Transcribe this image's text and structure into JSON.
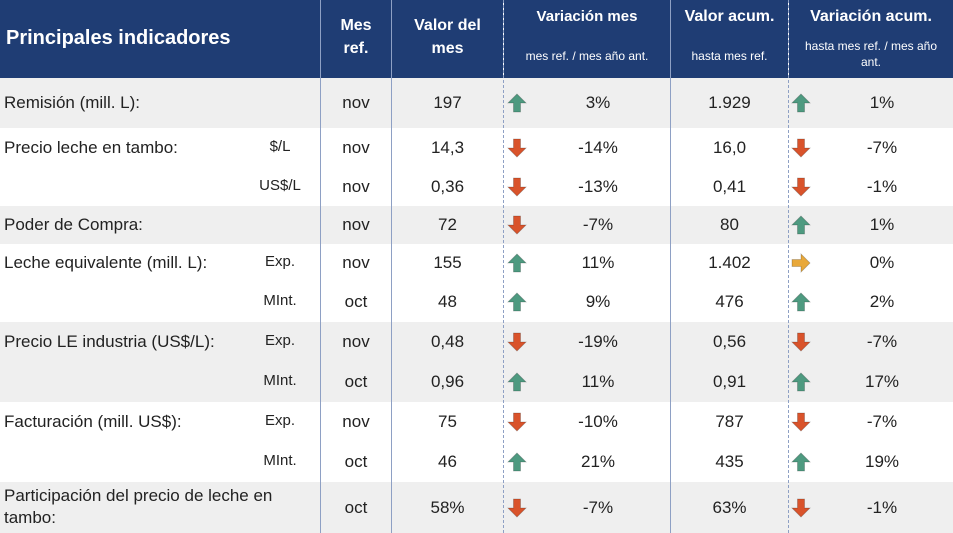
{
  "header": {
    "title": "Principales indicadores",
    "mes_ref": "Mes ref.",
    "valor_mes": "Valor del mes",
    "variacion_mes": "Variación mes",
    "variacion_mes_sub": "mes ref. / mes año ant.",
    "valor_acum": "Valor acum.",
    "valor_acum_sub": "hasta mes ref.",
    "variacion_acum": "Variación acum.",
    "variacion_acum_sub": "hasta mes ref. / mes año ant."
  },
  "colors": {
    "header_bg": "#1f3d74",
    "up": "#4e9a80",
    "down": "#d9532b",
    "flat": "#e8a83a",
    "band": "#efefef"
  },
  "rows": [
    {
      "label": "Remisión (mill. L):",
      "unit": "",
      "mes": "nov",
      "valor": "197",
      "var_mes_dir": "up",
      "var_mes": "3%",
      "acum": "1.929",
      "var_acum_dir": "up",
      "var_acum": "1%"
    },
    {
      "label": "Precio leche en tambo:",
      "unit": "$/L",
      "mes": "nov",
      "valor": "14,3",
      "var_mes_dir": "down",
      "var_mes": "-14%",
      "acum": "16,0",
      "var_acum_dir": "down",
      "var_acum": "-7%"
    },
    {
      "label": "",
      "unit": "US$/L",
      "mes": "nov",
      "valor": "0,36",
      "var_mes_dir": "down",
      "var_mes": "-13%",
      "acum": "0,41",
      "var_acum_dir": "down",
      "var_acum": "-1%"
    },
    {
      "label": "Poder de Compra:",
      "unit": "",
      "mes": "nov",
      "valor": "72",
      "var_mes_dir": "down",
      "var_mes": "-7%",
      "acum": "80",
      "var_acum_dir": "up",
      "var_acum": "1%"
    },
    {
      "label": "Leche equivalente (mill. L):",
      "unit": "Exp.",
      "mes": "nov",
      "valor": "155",
      "var_mes_dir": "up",
      "var_mes": "11%",
      "acum": "1.402",
      "var_acum_dir": "flat",
      "var_acum": "0%"
    },
    {
      "label": "",
      "unit": "MInt.",
      "mes": "oct",
      "valor": "48",
      "var_mes_dir": "up",
      "var_mes": "9%",
      "acum": "476",
      "var_acum_dir": "up",
      "var_acum": "2%"
    },
    {
      "label": "Precio LE industria (US$/L):",
      "unit": "Exp.",
      "mes": "nov",
      "valor": "0,48",
      "var_mes_dir": "down",
      "var_mes": "-19%",
      "acum": "0,56",
      "var_acum_dir": "down",
      "var_acum": "-7%"
    },
    {
      "label": "",
      "unit": "MInt.",
      "mes": "oct",
      "valor": "0,96",
      "var_mes_dir": "up",
      "var_mes": "11%",
      "acum": "0,91",
      "var_acum_dir": "up",
      "var_acum": "17%"
    },
    {
      "label": "Facturación (mill. US$):",
      "unit": "Exp.",
      "mes": "nov",
      "valor": "75",
      "var_mes_dir": "down",
      "var_mes": "-10%",
      "acum": "787",
      "var_acum_dir": "down",
      "var_acum": "-7%"
    },
    {
      "label": "",
      "unit": "MInt.",
      "mes": "oct",
      "valor": "46",
      "var_mes_dir": "up",
      "var_mes": "21%",
      "acum": "435",
      "var_acum_dir": "up",
      "var_acum": "19%"
    },
    {
      "label": "Participación del precio de leche en tambo:",
      "unit": "",
      "mes": "oct",
      "valor": "58%",
      "var_mes_dir": "down",
      "var_mes": "-7%",
      "acum": "63%",
      "var_acum_dir": "down",
      "var_acum": "-1%"
    }
  ]
}
